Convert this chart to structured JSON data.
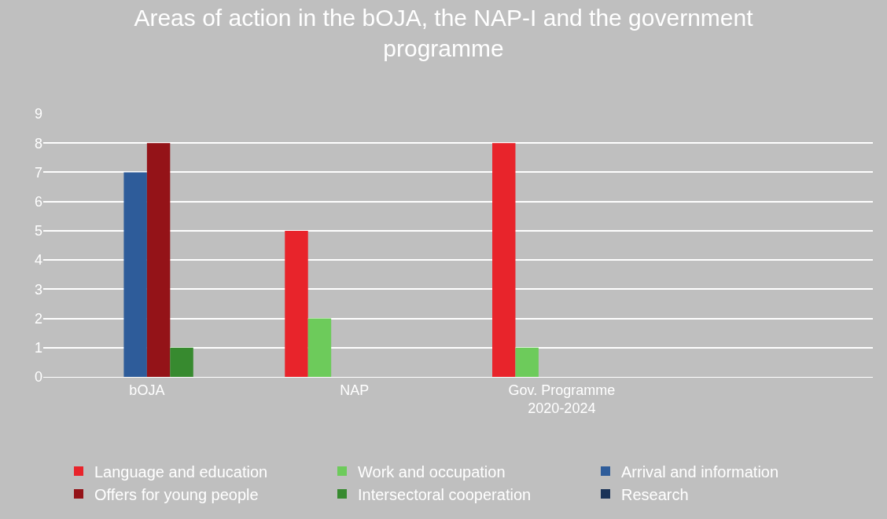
{
  "chart_data": {
    "type": "bar",
    "title": "Areas of action in the bOJA, the NAP-I and the government programme",
    "categories": [
      "bOJA",
      "NAP",
      "Gov. Programme 2020-2024",
      null
    ],
    "series": [
      {
        "name": "Language and education",
        "color": "#e8242b",
        "values": [
          0,
          5,
          8,
          0
        ]
      },
      {
        "name": "Work and occupation",
        "color": "#6dcb5b",
        "values": [
          0,
          2,
          1,
          0
        ]
      },
      {
        "name": "Arrival and information",
        "color": "#2e5c9a",
        "values": [
          7,
          0,
          0,
          0
        ]
      },
      {
        "name": "Offers for young people",
        "color": "#941318",
        "values": [
          8,
          0,
          0,
          0
        ]
      },
      {
        "name": "Intersectoral cooperation",
        "color": "#378a2f",
        "values": [
          1,
          0,
          0,
          0
        ]
      },
      {
        "name": "Research",
        "color": "#1a3358",
        "values": [
          0,
          0,
          0,
          0
        ]
      }
    ],
    "ylim": [
      0,
      9
    ],
    "yticks": [
      0,
      1,
      2,
      3,
      4,
      5,
      6,
      7,
      8,
      9
    ],
    "grid": "y",
    "legend": "bottom"
  }
}
